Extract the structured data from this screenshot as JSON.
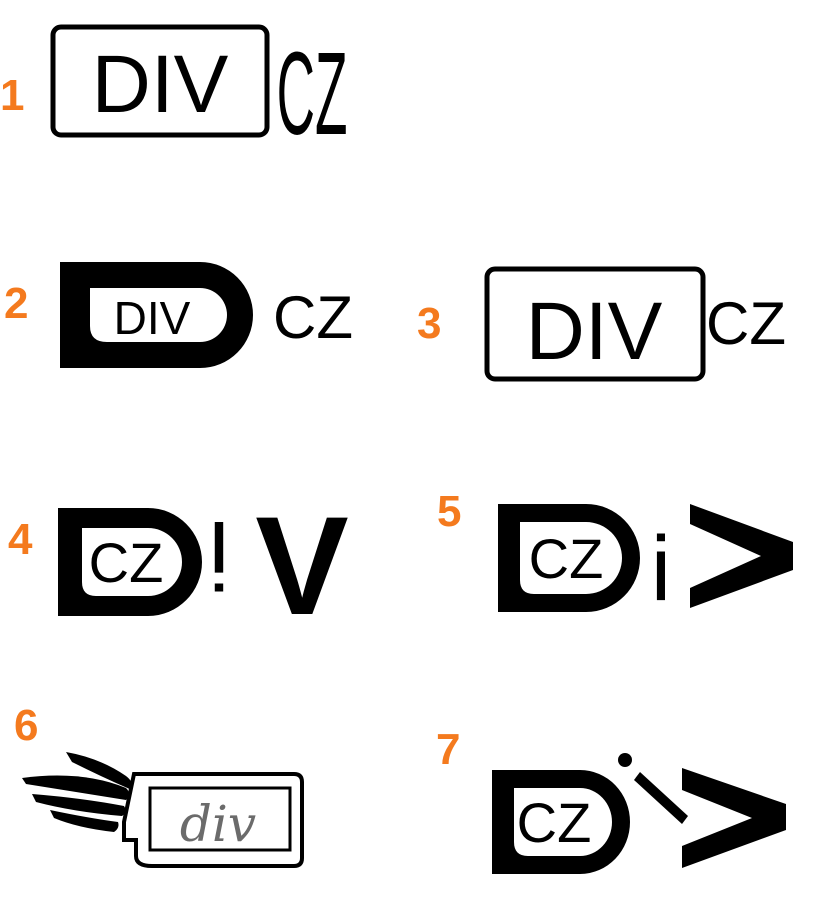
{
  "colors": {
    "accent": "#f47a1e",
    "ink": "#000000",
    "paper": "#ffffff",
    "gray": "#6b6b6b"
  },
  "variants": [
    {
      "number": "1",
      "logo_text": "DIV",
      "suffix": "CZ"
    },
    {
      "number": "2",
      "logo_text": "DIV",
      "suffix": "CZ"
    },
    {
      "number": "3",
      "logo_text": "DIV",
      "suffix": "CZ"
    },
    {
      "number": "4",
      "inner_text": "CZ",
      "i": "i",
      "v": "V"
    },
    {
      "number": "5",
      "inner_text": "CZ",
      "i": "i"
    },
    {
      "number": "6",
      "logo_text": "div",
      "icon": "wing-icon"
    },
    {
      "number": "7",
      "inner_text": "CZ"
    }
  ]
}
